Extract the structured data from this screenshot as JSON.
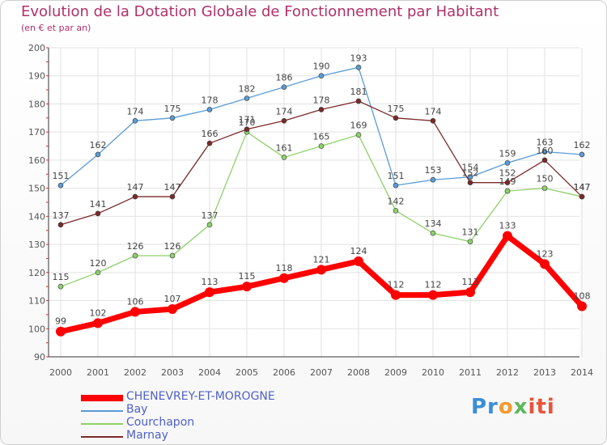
{
  "title": "Evolution de la Dotation Globale de Fonctionnement par Habitant",
  "subtitle": "(en € et par an)",
  "logo": "Proxiti",
  "chart_data": {
    "type": "line",
    "title": "Evolution de la Dotation Globale de Fonctionnement par Habitant",
    "subtitle": "(en € et par an)",
    "xlabel": "",
    "ylabel": "",
    "ylim": [
      90,
      200
    ],
    "yticks": [
      90,
      100,
      110,
      120,
      130,
      140,
      150,
      160,
      170,
      180,
      190,
      200
    ],
    "grid": true,
    "legend_position": "bottom-left",
    "x": [
      "2000",
      "2001",
      "2002",
      "2003",
      "2004",
      "2005",
      "2006",
      "2007",
      "2008",
      "2009",
      "2010",
      "2011",
      "2012",
      "2013",
      "2014"
    ],
    "series": [
      {
        "name": "CHENEVREY-ET-MOROGNE",
        "color": "#ff0000",
        "values": [
          99,
          102,
          106,
          107,
          113,
          115,
          118,
          121,
          124,
          112,
          112,
          113,
          133,
          123,
          108
        ]
      },
      {
        "name": "Bay",
        "color": "#5b9bd5",
        "values": [
          151,
          162,
          174,
          175,
          178,
          182,
          186,
          190,
          193,
          151,
          153,
          154,
          159,
          163,
          162
        ]
      },
      {
        "name": "Courchapon",
        "color": "#8ed16a",
        "values": [
          115,
          120,
          126,
          126,
          137,
          170,
          161,
          165,
          169,
          142,
          134,
          131,
          149,
          150,
          147
        ]
      },
      {
        "name": "Marnay",
        "color": "#7a2a2a",
        "values": [
          137,
          141,
          147,
          147,
          166,
          171,
          174,
          178,
          181,
          175,
          174,
          152,
          152,
          160,
          147
        ]
      }
    ]
  }
}
